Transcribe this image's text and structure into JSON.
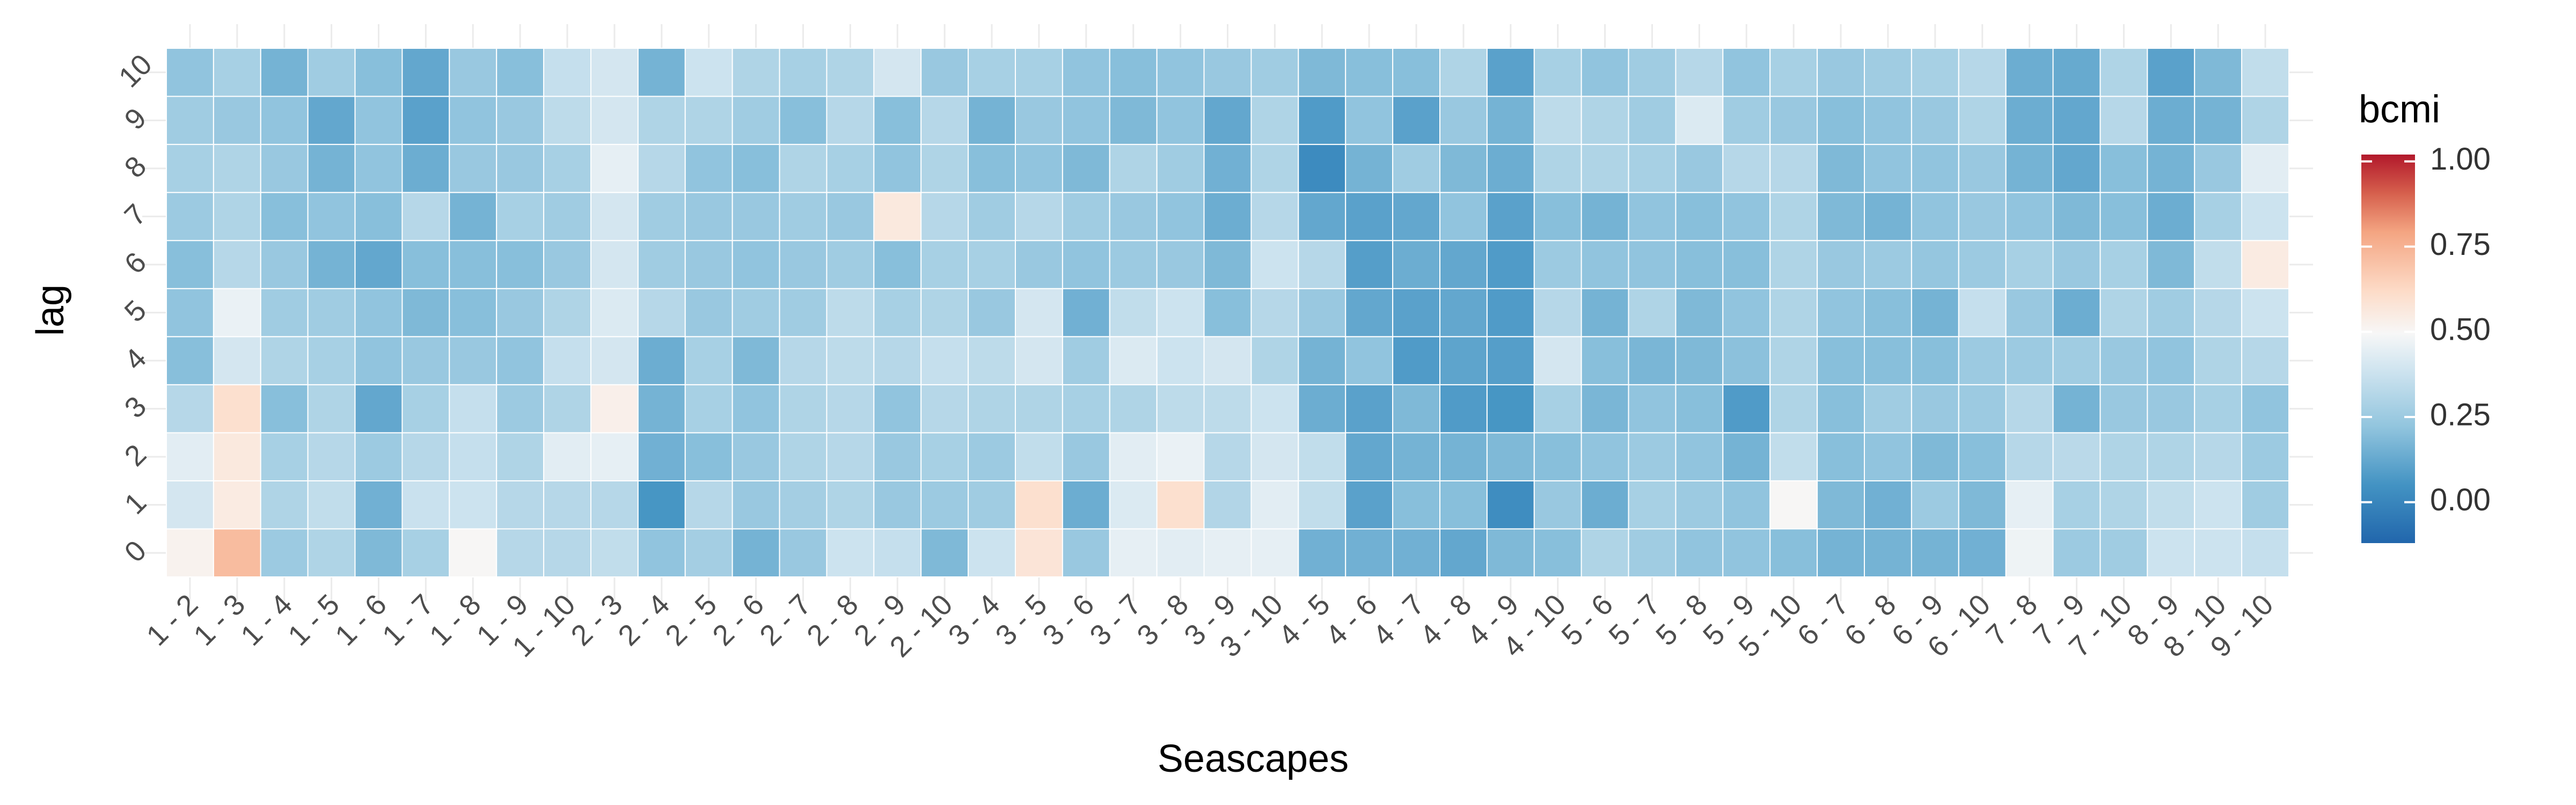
{
  "chart_data": {
    "type": "heatmap",
    "xlabel": "Seascapes",
    "ylabel": "lag",
    "x": [
      "1 - 2",
      "1 - 3",
      "1 - 4",
      "1 - 5",
      "1 - 6",
      "1 - 7",
      "1 - 8",
      "1 - 9",
      "1 - 10",
      "2 - 3",
      "2 - 4",
      "2 - 5",
      "2 - 6",
      "2 - 7",
      "2 - 8",
      "2 - 9",
      "2 - 10",
      "3 - 4",
      "3 - 5",
      "3 - 6",
      "3 - 7",
      "3 - 8",
      "3 - 9",
      "3 - 10",
      "4 - 5",
      "4 - 6",
      "4 - 7",
      "4 - 8",
      "4 - 9",
      "4 - 10",
      "5 - 6",
      "5 - 7",
      "5 - 8",
      "5 - 9",
      "5 - 10",
      "6 - 7",
      "6 - 8",
      "6 - 9",
      "6 - 10",
      "7 - 8",
      "7 - 9",
      "7 - 10",
      "8 - 9",
      "8 - 10",
      "9 - 10"
    ],
    "y": [
      "0",
      "1",
      "2",
      "3",
      "4",
      "5",
      "6",
      "7",
      "8",
      "9",
      "10"
    ],
    "legend": {
      "title": "bcmi",
      "ticks": [
        0.0,
        0.25,
        0.5,
        0.75,
        1.0
      ],
      "tick_labels": [
        "0.00",
        "0.25",
        "0.50",
        "0.75",
        "1.00"
      ],
      "range": [
        -0.12,
        1.02
      ],
      "position": "right"
    },
    "grid": true,
    "values": [
      [
        0.52,
        0.72,
        0.25,
        0.3,
        0.18,
        0.28,
        0.5,
        0.32,
        0.32,
        0.35,
        0.22,
        0.27,
        0.16,
        0.24,
        0.38,
        0.36,
        0.18,
        0.38,
        0.58,
        0.24,
        0.45,
        0.44,
        0.45,
        0.45,
        0.15,
        0.15,
        0.15,
        0.12,
        0.18,
        0.2,
        0.3,
        0.26,
        0.22,
        0.22,
        0.2,
        0.16,
        0.16,
        0.16,
        0.15,
        0.47,
        0.25,
        0.26,
        0.38,
        0.38,
        0.36
      ],
      [
        0.4,
        0.55,
        0.3,
        0.35,
        0.15,
        0.37,
        0.38,
        0.32,
        0.32,
        0.32,
        0.06,
        0.32,
        0.24,
        0.27,
        0.3,
        0.24,
        0.25,
        0.26,
        0.6,
        0.14,
        0.42,
        0.6,
        0.31,
        0.44,
        0.35,
        0.1,
        0.2,
        0.2,
        0.03,
        0.24,
        0.14,
        0.28,
        0.25,
        0.22,
        0.5,
        0.18,
        0.15,
        0.25,
        0.18,
        0.45,
        0.28,
        0.3,
        0.35,
        0.38,
        0.26
      ],
      [
        0.44,
        0.56,
        0.28,
        0.32,
        0.25,
        0.32,
        0.36,
        0.3,
        0.44,
        0.45,
        0.15,
        0.2,
        0.24,
        0.3,
        0.32,
        0.24,
        0.28,
        0.25,
        0.35,
        0.24,
        0.44,
        0.46,
        0.32,
        0.4,
        0.35,
        0.12,
        0.16,
        0.16,
        0.18,
        0.2,
        0.22,
        0.25,
        0.22,
        0.16,
        0.35,
        0.2,
        0.22,
        0.18,
        0.2,
        0.32,
        0.33,
        0.3,
        0.3,
        0.32,
        0.25
      ],
      [
        0.32,
        0.6,
        0.2,
        0.3,
        0.12,
        0.28,
        0.36,
        0.25,
        0.3,
        0.53,
        0.16,
        0.28,
        0.22,
        0.3,
        0.32,
        0.22,
        0.32,
        0.3,
        0.3,
        0.28,
        0.3,
        0.34,
        0.34,
        0.38,
        0.14,
        0.1,
        0.18,
        0.08,
        0.06,
        0.28,
        0.17,
        0.22,
        0.2,
        0.08,
        0.3,
        0.2,
        0.26,
        0.24,
        0.25,
        0.32,
        0.16,
        0.24,
        0.24,
        0.28,
        0.22
      ],
      [
        0.2,
        0.4,
        0.3,
        0.28,
        0.22,
        0.24,
        0.24,
        0.22,
        0.36,
        0.4,
        0.14,
        0.28,
        0.18,
        0.32,
        0.34,
        0.32,
        0.36,
        0.34,
        0.4,
        0.26,
        0.42,
        0.38,
        0.4,
        0.3,
        0.16,
        0.22,
        0.08,
        0.11,
        0.09,
        0.4,
        0.2,
        0.17,
        0.18,
        0.21,
        0.3,
        0.2,
        0.2,
        0.2,
        0.25,
        0.25,
        0.26,
        0.24,
        0.22,
        0.3,
        0.32
      ],
      [
        0.22,
        0.46,
        0.26,
        0.26,
        0.22,
        0.18,
        0.2,
        0.24,
        0.3,
        0.42,
        0.32,
        0.24,
        0.26,
        0.26,
        0.34,
        0.28,
        0.3,
        0.24,
        0.4,
        0.15,
        0.35,
        0.38,
        0.2,
        0.32,
        0.24,
        0.12,
        0.1,
        0.12,
        0.08,
        0.32,
        0.16,
        0.3,
        0.18,
        0.22,
        0.3,
        0.22,
        0.2,
        0.16,
        0.36,
        0.24,
        0.14,
        0.3,
        0.26,
        0.32,
        0.38
      ],
      [
        0.2,
        0.32,
        0.24,
        0.16,
        0.12,
        0.2,
        0.2,
        0.2,
        0.24,
        0.4,
        0.26,
        0.24,
        0.22,
        0.24,
        0.26,
        0.2,
        0.28,
        0.28,
        0.24,
        0.22,
        0.25,
        0.24,
        0.18,
        0.38,
        0.32,
        0.09,
        0.14,
        0.12,
        0.08,
        0.25,
        0.22,
        0.22,
        0.2,
        0.2,
        0.3,
        0.24,
        0.25,
        0.23,
        0.25,
        0.28,
        0.24,
        0.28,
        0.18,
        0.35,
        0.55
      ],
      [
        0.25,
        0.3,
        0.2,
        0.22,
        0.2,
        0.32,
        0.16,
        0.28,
        0.26,
        0.4,
        0.26,
        0.24,
        0.24,
        0.26,
        0.24,
        0.56,
        0.32,
        0.26,
        0.32,
        0.26,
        0.24,
        0.22,
        0.14,
        0.32,
        0.12,
        0.1,
        0.12,
        0.22,
        0.1,
        0.2,
        0.16,
        0.22,
        0.2,
        0.22,
        0.3,
        0.18,
        0.16,
        0.22,
        0.24,
        0.22,
        0.18,
        0.2,
        0.14,
        0.28,
        0.38
      ],
      [
        0.28,
        0.3,
        0.24,
        0.16,
        0.22,
        0.14,
        0.24,
        0.24,
        0.28,
        0.45,
        0.32,
        0.22,
        0.2,
        0.3,
        0.28,
        0.22,
        0.3,
        0.2,
        0.22,
        0.18,
        0.3,
        0.26,
        0.15,
        0.3,
        0.02,
        0.16,
        0.26,
        0.18,
        0.14,
        0.3,
        0.3,
        0.28,
        0.24,
        0.32,
        0.32,
        0.18,
        0.22,
        0.22,
        0.24,
        0.16,
        0.12,
        0.2,
        0.16,
        0.24,
        0.44
      ],
      [
        0.26,
        0.24,
        0.22,
        0.12,
        0.22,
        0.1,
        0.22,
        0.24,
        0.34,
        0.4,
        0.3,
        0.3,
        0.26,
        0.2,
        0.32,
        0.2,
        0.32,
        0.16,
        0.24,
        0.22,
        0.18,
        0.22,
        0.12,
        0.3,
        0.08,
        0.22,
        0.1,
        0.24,
        0.16,
        0.34,
        0.3,
        0.26,
        0.42,
        0.26,
        0.24,
        0.2,
        0.22,
        0.24,
        0.3,
        0.14,
        0.12,
        0.32,
        0.14,
        0.16,
        0.3
      ],
      [
        0.22,
        0.28,
        0.16,
        0.26,
        0.2,
        0.12,
        0.24,
        0.2,
        0.36,
        0.4,
        0.16,
        0.38,
        0.3,
        0.28,
        0.3,
        0.4,
        0.24,
        0.28,
        0.28,
        0.22,
        0.2,
        0.22,
        0.24,
        0.26,
        0.18,
        0.2,
        0.2,
        0.3,
        0.1,
        0.28,
        0.22,
        0.26,
        0.32,
        0.22,
        0.28,
        0.24,
        0.26,
        0.28,
        0.32,
        0.14,
        0.13,
        0.3,
        0.1,
        0.18,
        0.35
      ]
    ]
  }
}
